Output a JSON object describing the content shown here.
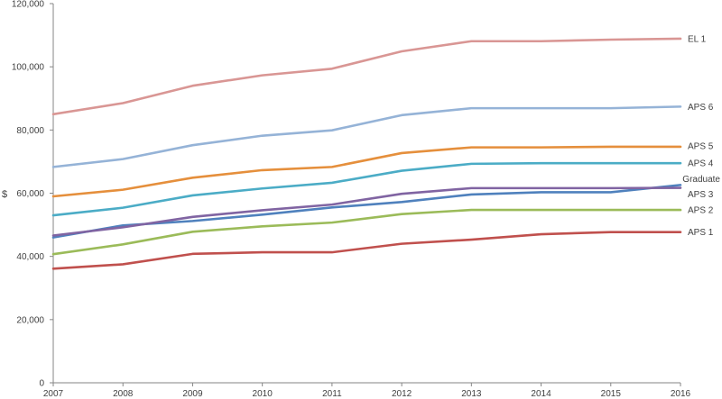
{
  "chart_data": {
    "type": "line",
    "title": "",
    "xlabel": "",
    "ylabel": "$",
    "ylim": [
      0,
      120000
    ],
    "y_ticks": [
      "0",
      "20,000",
      "40,000",
      "60,000",
      "80,000",
      "100,000",
      "120,000"
    ],
    "y_tick_values": [
      0,
      20000,
      40000,
      60000,
      80000,
      100000,
      120000
    ],
    "x": [
      "2007",
      "2008",
      "2009",
      "2010",
      "2011",
      "2012",
      "2013",
      "2014",
      "2015",
      "2016"
    ],
    "grid": false,
    "legend": "labels at line ends (right)",
    "series": [
      {
        "name": "EL 1",
        "color": "#d99694",
        "values": [
          85000,
          88500,
          94000,
          97300,
          99400,
          104900,
          108100,
          108100,
          108600,
          108900
        ]
      },
      {
        "name": "APS 6",
        "color": "#95b3d7",
        "values": [
          68300,
          70800,
          75200,
          78200,
          79900,
          84700,
          86900,
          86900,
          86900,
          87400
        ]
      },
      {
        "name": "APS 5",
        "color": "#e58f3c",
        "values": [
          59000,
          61100,
          64900,
          67300,
          68300,
          72700,
          74500,
          74500,
          74700,
          74700
        ]
      },
      {
        "name": "APS 4",
        "color": "#4bacc6",
        "values": [
          53000,
          55400,
          59300,
          61500,
          63300,
          67100,
          69300,
          69500,
          69500,
          69500
        ]
      },
      {
        "name": "Graduate",
        "color": "#4f81bd",
        "values": [
          46000,
          49800,
          51200,
          53200,
          55500,
          57200,
          59600,
          60300,
          60300,
          62600
        ]
      },
      {
        "name": "APS 3",
        "color": "#8064a2",
        "values": [
          46600,
          49200,
          52500,
          54600,
          56400,
          59800,
          61600,
          61600,
          61600,
          61700
        ]
      },
      {
        "name": "APS 2",
        "color": "#9bbb59",
        "values": [
          40700,
          43800,
          47800,
          49500,
          50700,
          53400,
          54700,
          54700,
          54700,
          54700
        ]
      },
      {
        "name": "APS 1",
        "color": "#c0504d",
        "values": [
          36100,
          37500,
          40800,
          41300,
          41300,
          44000,
          45300,
          47000,
          47700,
          47700
        ]
      }
    ]
  }
}
